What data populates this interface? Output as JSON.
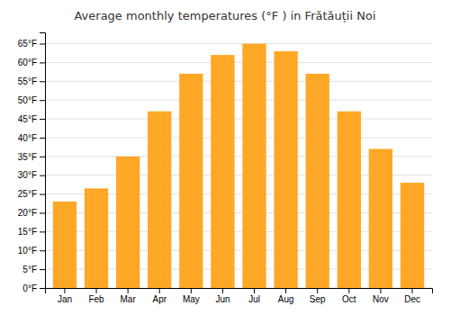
{
  "chart_data": {
    "type": "bar",
    "title": "Average monthly temperatures (°F ) in Frătăuții Noi",
    "categories": [
      "Jan",
      "Feb",
      "Mar",
      "Apr",
      "May",
      "Jun",
      "Jul",
      "Aug",
      "Sep",
      "Oct",
      "Nov",
      "Dec"
    ],
    "values": [
      23,
      26.5,
      35,
      47,
      57,
      62,
      65,
      63,
      57,
      47,
      37,
      28
    ],
    "color": "#FFA726",
    "ylim": [
      0,
      68
    ],
    "yticks": [
      {
        "value": 0,
        "label": "0°F"
      },
      {
        "value": 5,
        "label": "5°F"
      },
      {
        "value": 10,
        "label": "10°F"
      },
      {
        "value": 15,
        "label": "15°F"
      },
      {
        "value": 20,
        "label": "20°F"
      },
      {
        "value": 25,
        "label": "25°F"
      },
      {
        "value": 30,
        "label": "30°F"
      },
      {
        "value": 35,
        "label": "35°F"
      },
      {
        "value": 40,
        "label": "40°F"
      },
      {
        "value": 45,
        "label": "45°F"
      },
      {
        "value": 50,
        "label": "50°F"
      },
      {
        "value": 55,
        "label": "55°F"
      },
      {
        "value": 60,
        "label": "60°F"
      },
      {
        "value": 65,
        "label": "65°F"
      }
    ],
    "grid": true
  }
}
